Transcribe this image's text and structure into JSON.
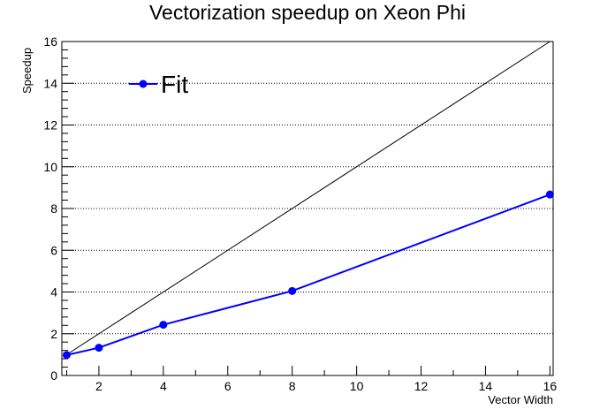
{
  "chart_data": {
    "type": "line",
    "title": "Vectorization speedup on Xeon Phi",
    "xlabel": "Vector Width",
    "ylabel": "Speedup",
    "xlim": [
      0.85,
      16.1
    ],
    "ylim": [
      0,
      16
    ],
    "x_ticks": [
      2,
      4,
      6,
      8,
      10,
      12,
      14,
      16
    ],
    "y_ticks": [
      0,
      2,
      4,
      6,
      8,
      10,
      12,
      14,
      16
    ],
    "grid": "horizontal dotted",
    "legend_position": "top-left",
    "series": [
      {
        "name": "Fit",
        "color": "#0000ff",
        "marker": "circle",
        "x": [
          1,
          2,
          4,
          8,
          16
        ],
        "y": [
          0.98,
          1.33,
          2.43,
          4.05,
          8.67
        ]
      }
    ],
    "reference_line": {
      "color": "#000000",
      "x": [
        1,
        16
      ],
      "y": [
        1,
        16
      ]
    }
  }
}
